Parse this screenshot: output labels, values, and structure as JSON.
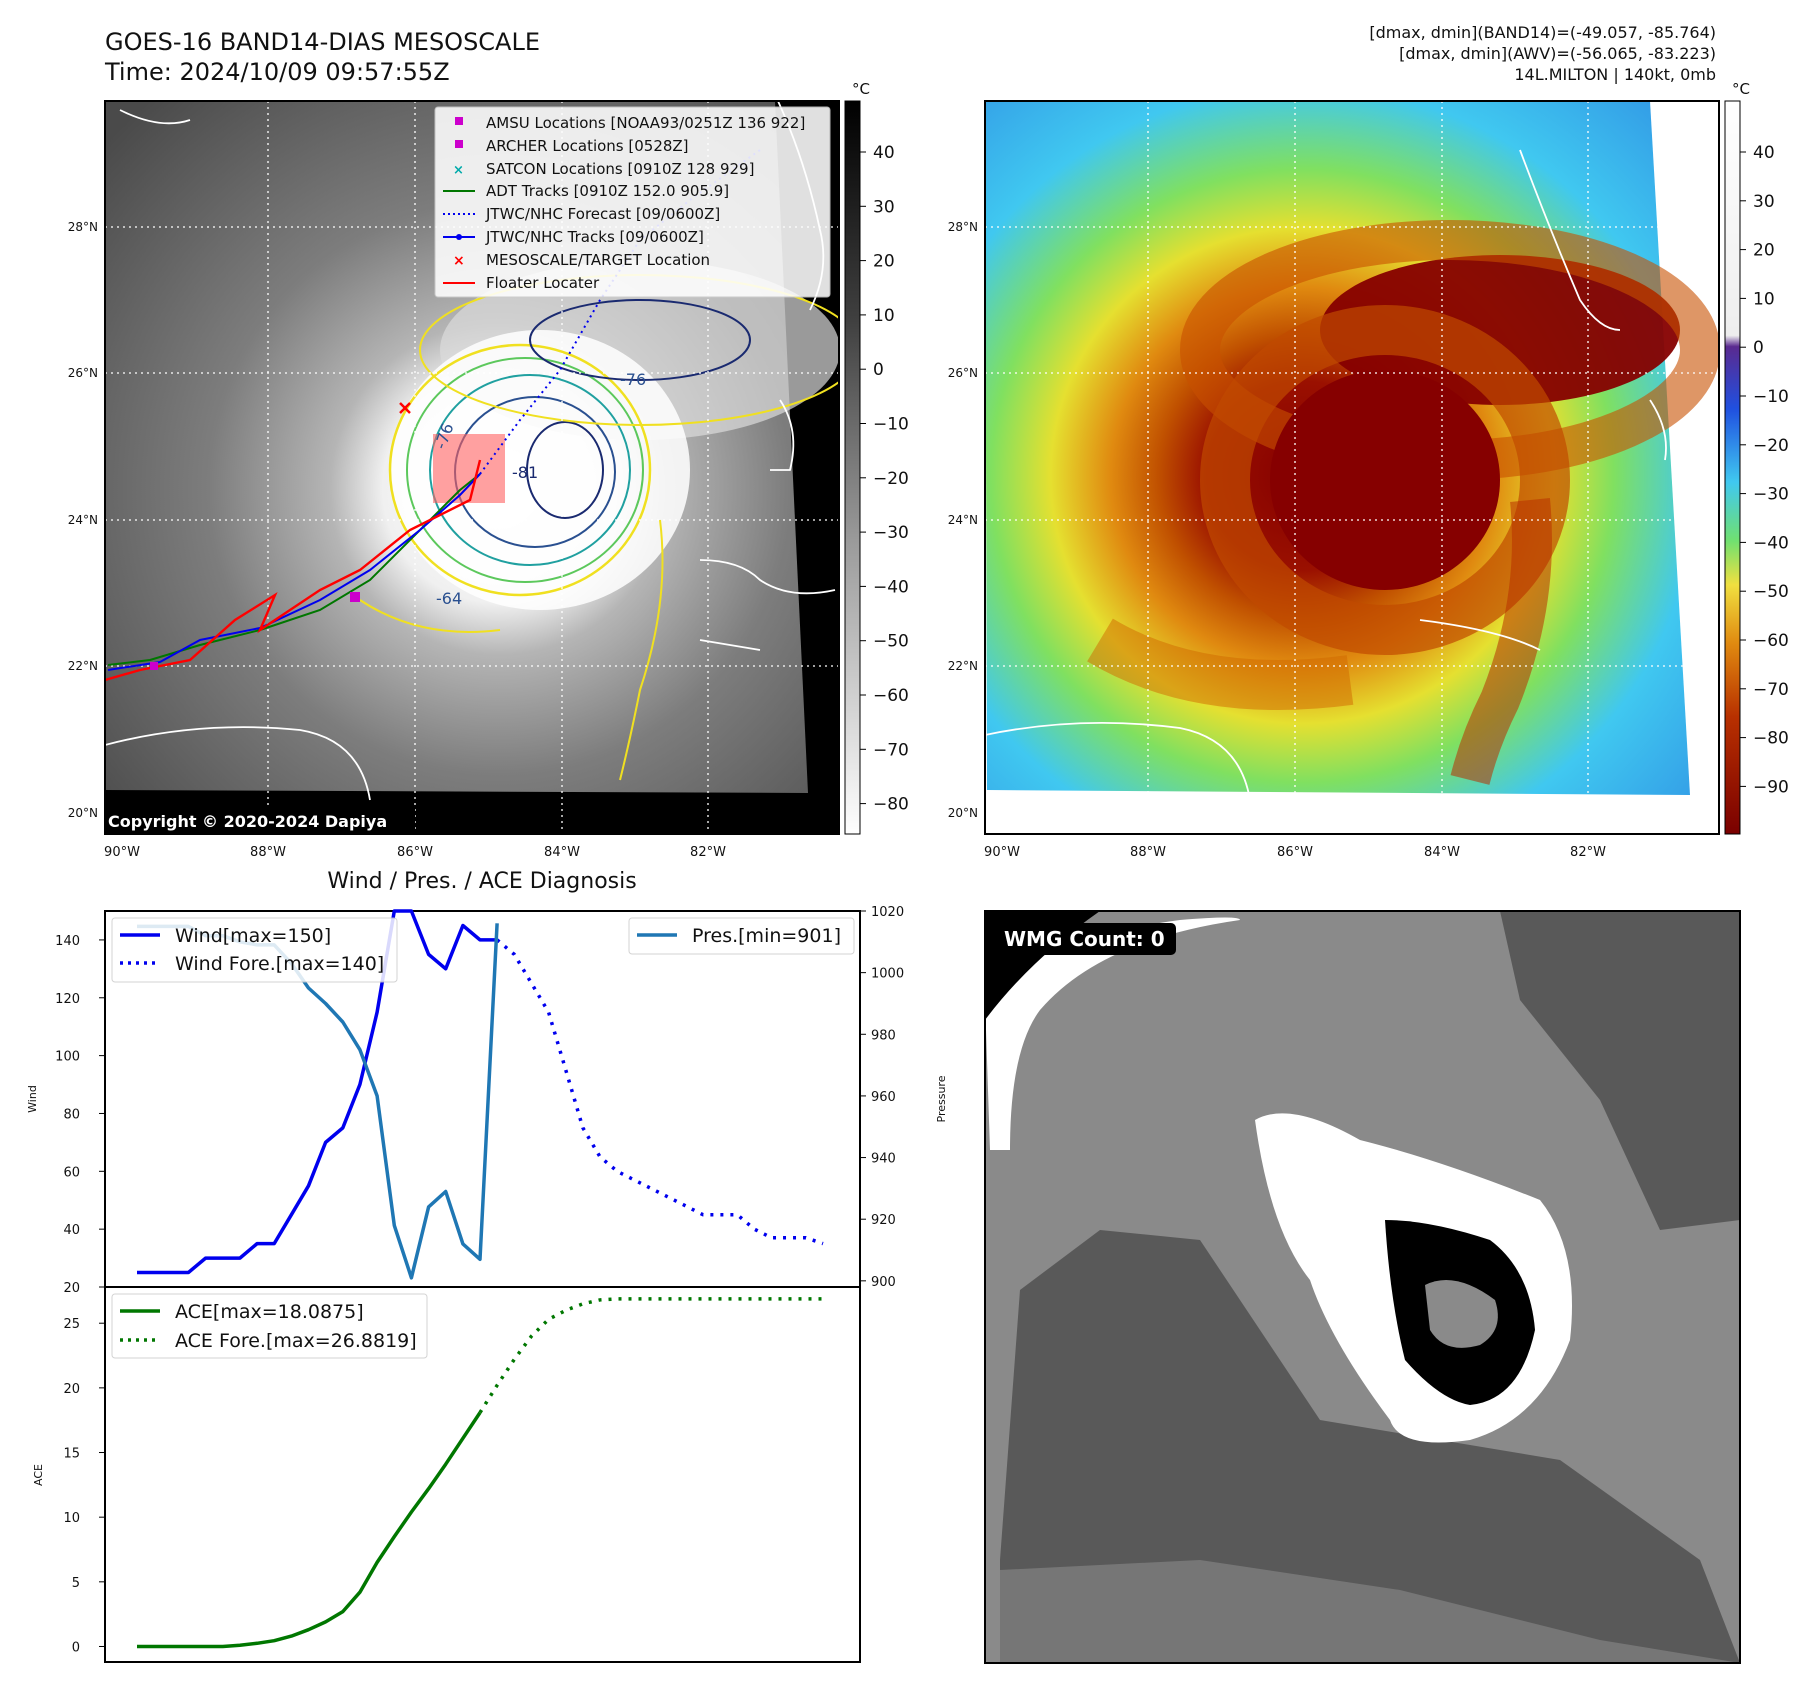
{
  "header": {
    "title": "GOES-16 BAND14-DIAS MESOSCALE",
    "time": "Time: 2024/10/09 09:57:55Z",
    "dmax_band14": "[dmax, dmin](BAND14)=(-49.057, -85.764)",
    "dmax_awv": "[dmax, dmin](AWV)=(-56.065, -83.223)",
    "storm": "14L.MILTON | 140kt, 0mb"
  },
  "copyright": "Copyright © 2020-2024 Dapiya",
  "wmg_label": "WMG Count: 0",
  "colorbar_unit": "°C",
  "map_axes": {
    "lat_ticks": [
      "28°N",
      "26°N",
      "24°N",
      "22°N",
      "20°N"
    ],
    "lon_ticks": [
      "90°W",
      "88°W",
      "86°W",
      "84°W",
      "82°W"
    ],
    "gray_cbar_ticks": [
      "40",
      "30",
      "20",
      "10",
      "0",
      "−10",
      "−20",
      "−30",
      "−40",
      "−50",
      "−60",
      "−70",
      "−80"
    ],
    "color_cbar_ticks": [
      "40",
      "30",
      "20",
      "10",
      "0",
      "−10",
      "−20",
      "−30",
      "−40",
      "−50",
      "−60",
      "−70",
      "−80",
      "−90"
    ]
  },
  "legend": {
    "items": [
      {
        "label": "AMSU Locations [NOAA93/0251Z 136 922]",
        "color": "#cc00cc",
        "marker": "square"
      },
      {
        "label": "ARCHER Locations [0528Z]",
        "color": "#cc00cc",
        "marker": "square"
      },
      {
        "label": "SATCON Locations [0910Z 128 929]",
        "color": "#00aaaa",
        "marker": "x"
      },
      {
        "label": "ADT Tracks [0910Z 152.0 905.9]",
        "color": "#007700",
        "marker": "line"
      },
      {
        "label": "JTWC/NHC Forecast [09/0600Z]",
        "color": "#0000ee",
        "marker": "dotted"
      },
      {
        "label": "JTWC/NHC Tracks [09/0600Z]",
        "color": "#0000ee",
        "marker": "line-dot"
      },
      {
        "label": "MESOSCALE/TARGET Location",
        "color": "#ff0000",
        "marker": "x"
      },
      {
        "label": "Floater Locater",
        "color": "#ff0000",
        "marker": "line"
      }
    ]
  },
  "contour_labels": [
    "-76",
    "-76",
    "-81",
    "-64"
  ],
  "chart_data": [
    {
      "type": "line",
      "title": "Wind / Pres. / ACE Diagnosis",
      "ylabel": "Wind",
      "y2label": "Pressure",
      "ylim": [
        20,
        150
      ],
      "y2lim": [
        898,
        1020
      ],
      "y_ticks": [
        20,
        40,
        60,
        80,
        100,
        120,
        140
      ],
      "y2_ticks": [
        900,
        920,
        940,
        960,
        980,
        1000,
        1020
      ],
      "x": [
        0,
        1,
        2,
        3,
        4,
        5,
        6,
        7,
        8,
        9,
        10,
        11,
        12,
        13,
        14,
        15,
        16,
        17,
        18,
        19,
        20,
        21,
        22,
        23,
        24,
        25,
        26,
        27,
        28,
        29,
        30,
        31,
        32,
        33,
        34,
        35,
        36,
        37,
        38,
        39,
        40
      ],
      "series": [
        {
          "name": "Wind[max=150]",
          "color": "#0000ee",
          "style": "solid",
          "values": [
            25,
            25,
            25,
            25,
            30,
            30,
            30,
            35,
            35,
            45,
            55,
            70,
            75,
            90,
            115,
            150,
            150,
            135,
            130,
            145,
            140,
            140,
            null,
            null,
            null,
            null,
            null,
            null,
            null,
            null,
            null,
            null,
            null,
            null,
            null,
            null,
            null,
            null,
            null,
            null,
            null
          ]
        },
        {
          "name": "Wind Fore.[max=140]",
          "color": "#0000ee",
          "style": "dotted",
          "values": [
            null,
            null,
            null,
            null,
            null,
            null,
            null,
            null,
            null,
            null,
            null,
            null,
            null,
            null,
            null,
            null,
            null,
            null,
            null,
            null,
            null,
            140,
            135,
            125,
            115,
            95,
            75,
            65,
            60,
            57,
            54,
            51,
            48,
            45,
            45,
            45,
            40,
            37,
            37,
            37,
            35
          ]
        },
        {
          "name": "Pres.[min=901]",
          "color": "#1f77b4",
          "style": "solid",
          "axis": "right",
          "values": [
            1015,
            1015,
            1015,
            1015,
            1012,
            1012,
            1010,
            1009,
            1009,
            1003,
            995,
            990,
            984,
            975,
            960,
            918,
            901,
            924,
            929,
            912,
            907,
            1016,
            null,
            null,
            null,
            null,
            null,
            null,
            null,
            null,
            null,
            null,
            null,
            null,
            null,
            null,
            null,
            null,
            null,
            null,
            null
          ]
        }
      ]
    },
    {
      "type": "line",
      "ylabel": "ACE",
      "ylim": [
        -1.2,
        27.8
      ],
      "y_ticks": [
        0,
        5,
        10,
        15,
        20,
        25
      ],
      "x": [
        0,
        1,
        2,
        3,
        4,
        5,
        6,
        7,
        8,
        9,
        10,
        11,
        12,
        13,
        14,
        15,
        16,
        17,
        18,
        19,
        20,
        21,
        22,
        23,
        24,
        25,
        26,
        27,
        28,
        29,
        30,
        31,
        32,
        33,
        34,
        35,
        36,
        37,
        38,
        39,
        40
      ],
      "series": [
        {
          "name": "ACE[max=18.0875]",
          "color": "#007700",
          "style": "solid",
          "values": [
            0,
            0,
            0,
            0,
            0,
            0,
            0.1,
            0.25,
            0.45,
            0.8,
            1.3,
            1.9,
            2.7,
            4.2,
            6.5,
            8.5,
            10.4,
            12.2,
            14.1,
            16.1,
            18.0875,
            null,
            null,
            null,
            null,
            null,
            null,
            null,
            null,
            null,
            null,
            null,
            null,
            null,
            null,
            null,
            null,
            null,
            null,
            null,
            null
          ]
        },
        {
          "name": "ACE Fore.[max=26.8819]",
          "color": "#007700",
          "style": "dotted",
          "values": [
            null,
            null,
            null,
            null,
            null,
            null,
            null,
            null,
            null,
            null,
            null,
            null,
            null,
            null,
            null,
            null,
            null,
            null,
            null,
            null,
            18.0875,
            20.2,
            22.2,
            24.0,
            25.3,
            26.0,
            26.5,
            26.8,
            26.88,
            26.88,
            26.88,
            26.88,
            26.88,
            26.88,
            26.88,
            26.88,
            26.88,
            26.88,
            26.88,
            26.88,
            26.8819
          ]
        }
      ]
    }
  ]
}
